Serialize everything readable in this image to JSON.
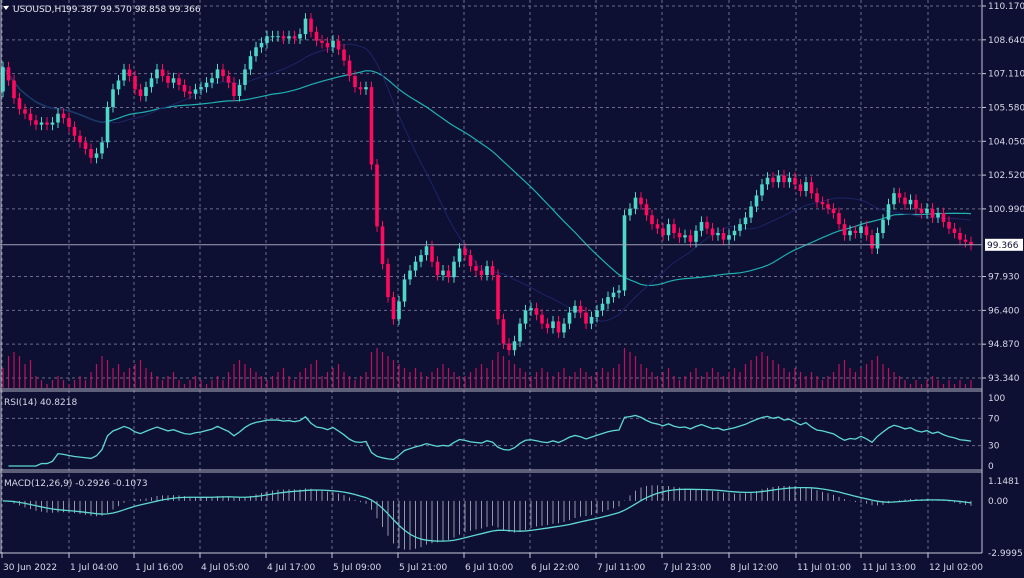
{
  "header": {
    "symbol": "USOUSD,H1",
    "ohlc": "99.387 99.570 98.858 99.366"
  },
  "colors": {
    "background": "#0d0f33",
    "bull": "#4fd8c8",
    "bear": "#ff0a5e",
    "grid": "#6a6c8a",
    "ma_slow": "#1fb0b0",
    "ma_fast": "#1c2566",
    "indicator": "#5ed8d0",
    "volume": "#c0105a"
  },
  "price_axis": {
    "ticks": [
      "110.170",
      "108.640",
      "107.110",
      "105.580",
      "104.050",
      "102.520",
      "100.990",
      "97.930",
      "96.400",
      "94.870",
      "93.340"
    ],
    "current": "99.366"
  },
  "rsi": {
    "label": "RSI(14) 40.8218",
    "ticks": [
      "100",
      "70",
      "30",
      "0"
    ]
  },
  "macd": {
    "label": "MACD(12,26,9) -0.2926 -0.1073",
    "ticks": [
      "1.1481",
      "0.00",
      "-2.9995"
    ]
  },
  "chart_data": {
    "type": "candlestick",
    "title": "USOUSD,H1",
    "timeframe": "H1",
    "x_tick_labels": [
      "30 Jun 2022",
      "1 Jul 04:00",
      "1 Jul 16:00",
      "4 Jul 05:00",
      "4 Jul 17:00",
      "5 Jul 09:00",
      "5 Jul 21:00",
      "6 Jul 10:00",
      "6 Jul 22:00",
      "7 Jul 11:00",
      "7 Jul 23:00",
      "8 Jul 12:00",
      "11 Jul 01:00",
      "11 Jul 13:00",
      "12 Jul 02:00"
    ],
    "ylim": [
      93.34,
      110.17
    ],
    "grid": true,
    "first_open": 106.3,
    "close": [
      107.4,
      106.8,
      106.0,
      105.5,
      105.3,
      105.0,
      104.8,
      104.9,
      104.8,
      104.9,
      105.3,
      105.1,
      104.7,
      104.3,
      104.0,
      103.7,
      103.3,
      103.5,
      104.0,
      105.6,
      106.4,
      106.8,
      107.3,
      107.0,
      106.4,
      106.1,
      106.5,
      106.9,
      107.3,
      107.0,
      106.7,
      106.9,
      106.6,
      106.3,
      106.2,
      106.4,
      106.5,
      106.7,
      106.9,
      107.3,
      107.0,
      106.7,
      106.1,
      106.6,
      107.3,
      107.9,
      108.3,
      108.5,
      108.8,
      108.8,
      108.8,
      108.7,
      108.8,
      108.7,
      108.9,
      109.6,
      109.0,
      108.6,
      108.5,
      108.3,
      108.6,
      108.2,
      107.7,
      107.0,
      106.5,
      106.4,
      106.5,
      103.0,
      100.2,
      98.5,
      97.0,
      96.0,
      96.8,
      97.8,
      98.2,
      98.6,
      98.9,
      99.3,
      98.6,
      98.0,
      98.2,
      97.9,
      98.6,
      99.2,
      98.9,
      98.4,
      98.2,
      98.0,
      98.4,
      98.0,
      96.0,
      94.9,
      94.6,
      95.0,
      95.8,
      96.4,
      96.5,
      96.2,
      95.8,
      95.6,
      95.9,
      95.4,
      95.8,
      96.3,
      96.6,
      96.3,
      95.8,
      96.1,
      96.4,
      96.7,
      97.0,
      97.2,
      97.3,
      100.7,
      101.0,
      101.5,
      101.2,
      100.7,
      100.3,
      100.1,
      99.8,
      100.3,
      99.9,
      99.7,
      99.8,
      99.5,
      100.0,
      100.4,
      100.1,
      99.8,
      99.9,
      99.6,
      99.8,
      100.0,
      100.3,
      100.6,
      101.1,
      101.6,
      102.1,
      102.4,
      102.2,
      102.5,
      102.2,
      102.4,
      102.1,
      101.8,
      102.2,
      101.7,
      101.3,
      101.2,
      101.0,
      100.8,
      100.3,
      99.8,
      100.0,
      99.9,
      100.2,
      99.8,
      99.2,
      99.9,
      100.5,
      101.2,
      101.7,
      101.5,
      101.2,
      101.4,
      101.0,
      100.8,
      101.0,
      100.6,
      100.8,
      100.4,
      100.1,
      99.9,
      99.6,
      99.5,
      99.366
    ],
    "volume": [
      5,
      8,
      9,
      8,
      6,
      7,
      3,
      2,
      1,
      2,
      3,
      2,
      1,
      2,
      3,
      2,
      4,
      6,
      8,
      7,
      5,
      6,
      4,
      5,
      6,
      7,
      5,
      4,
      3,
      2,
      3,
      4,
      2,
      1,
      2,
      3,
      2,
      1,
      2,
      3,
      2,
      4,
      6,
      7,
      6,
      5,
      4,
      3,
      2,
      3,
      4,
      5,
      3,
      2,
      4,
      5,
      6,
      7,
      3,
      4,
      5,
      6,
      4,
      3,
      2,
      3,
      4,
      9,
      10,
      9,
      8,
      7,
      6,
      5,
      4,
      5,
      4,
      3,
      4,
      5,
      6,
      5,
      4,
      3,
      3,
      4,
      5,
      6,
      5,
      7,
      9,
      8,
      7,
      6,
      5,
      4,
      3,
      4,
      5,
      4,
      3,
      4,
      5,
      3,
      4,
      5,
      4,
      3,
      4,
      5,
      4,
      5,
      6,
      10,
      9,
      8,
      6,
      5,
      4,
      3,
      4,
      5,
      3,
      2,
      3,
      4,
      5,
      3,
      4,
      5,
      4,
      3,
      4,
      5,
      4,
      6,
      7,
      8,
      9,
      8,
      7,
      6,
      5,
      4,
      5,
      4,
      3,
      4,
      3,
      2,
      3,
      4,
      6,
      7,
      5,
      4,
      5,
      6,
      7,
      8,
      6,
      5,
      4,
      3,
      2,
      1,
      2,
      1,
      2,
      3,
      2,
      1,
      2,
      1,
      2,
      1,
      2
    ]
  }
}
